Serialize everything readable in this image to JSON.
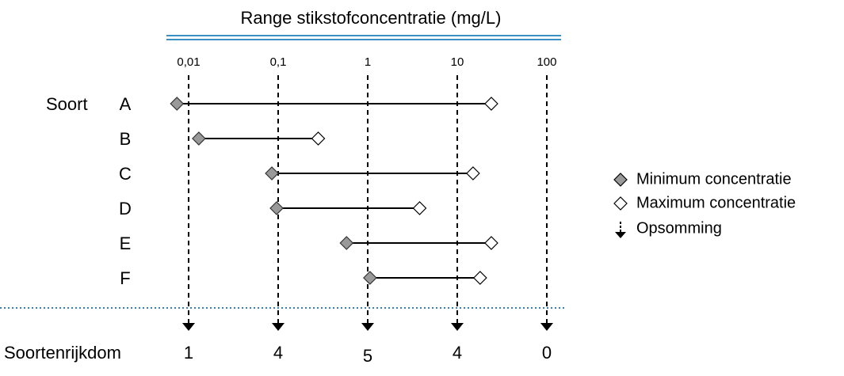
{
  "chart_data": {
    "type": "range",
    "title": "Range stikstofconcentratie (mg/L)",
    "y_label": "Soort",
    "categories": [
      "A",
      "B",
      "C",
      "D",
      "E",
      "F"
    ],
    "series": [
      {
        "name": "Minimum concentratie",
        "color": "#999999",
        "values": [
          0.0074,
          0.013,
          0.085,
          0.096,
          0.58,
          1.06
        ]
      },
      {
        "name": "Maximum concentratie",
        "color": "#ffffff",
        "values": [
          24,
          0.28,
          15,
          3.8,
          24,
          18
        ]
      }
    ],
    "arrow_legend": "Opsomming",
    "richness": {
      "label": "Soortenrijkdom",
      "values": [
        1,
        4,
        5,
        4,
        0
      ]
    },
    "log_x": true,
    "xlim": [
      0.005,
      200
    ],
    "xticks": [
      {
        "value": 0.01,
        "label": "0,01"
      },
      {
        "value": 0.1,
        "label": "0,1"
      },
      1,
      10,
      100
    ],
    "legend_position": "right"
  }
}
